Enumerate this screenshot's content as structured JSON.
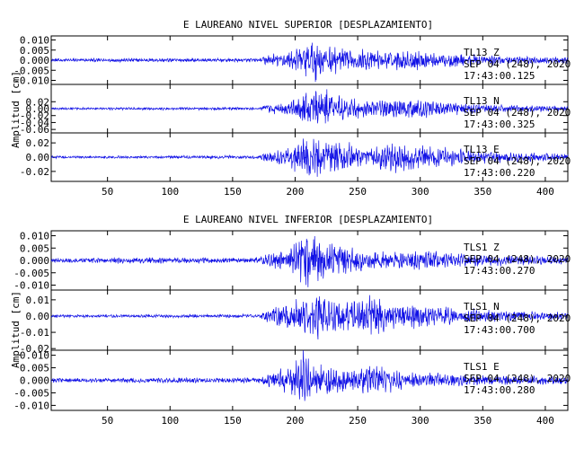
{
  "chart_data": [
    {
      "type": "line",
      "title": "E LAUREANO NIVEL SUPERIOR [DESPLAZAMIENTO]",
      "ylabel": "Amplitud [cm]",
      "xlim": [
        5,
        418
      ],
      "x_ticks": [
        "50",
        "100",
        "150",
        "200",
        "250",
        "300",
        "350",
        "400"
      ],
      "x_tick_values": [
        50,
        100,
        150,
        200,
        250,
        300,
        350,
        400
      ],
      "grid": false,
      "panels": [
        {
          "name": "TL13 Z",
          "ylim": [
            -0.012,
            0.012
          ],
          "y_ticks": [
            "0.010",
            "0.005",
            "0.000",
            "-0.005",
            "-0.010"
          ],
          "y_tick_values": [
            0.01,
            0.005,
            0.0,
            -0.005,
            -0.01
          ],
          "ann": [
            "TL13   Z",
            "SEP 04 (248), 2020",
            "17:43:00.125"
          ],
          "env": [
            [
              5,
              0.0007
            ],
            [
              60,
              0.0009
            ],
            [
              120,
              0.0008
            ],
            [
              172,
              0.0009
            ],
            [
              176,
              0.0025
            ],
            [
              190,
              0.0035
            ],
            [
              200,
              0.005
            ],
            [
              208,
              0.0095
            ],
            [
              215,
              0.011
            ],
            [
              222,
              0.008
            ],
            [
              235,
              0.0055
            ],
            [
              260,
              0.0045
            ],
            [
              290,
              0.005
            ],
            [
              320,
              0.0035
            ],
            [
              360,
              0.0022
            ],
            [
              418,
              0.0015
            ]
          ]
        },
        {
          "name": "TL13 N",
          "ylim": [
            -0.07,
            0.07
          ],
          "y_ticks": [
            "0.02",
            "0.00",
            "-0.02",
            "-0.04",
            "-0.06"
          ],
          "y_tick_values": [
            0.02,
            0.0,
            -0.02,
            -0.04,
            -0.06
          ],
          "ann": [
            "TL13   N",
            "SEP 04 (248), 2020",
            "17:43:00.325"
          ],
          "env": [
            [
              5,
              0.003
            ],
            [
              170,
              0.004
            ],
            [
              176,
              0.012
            ],
            [
              195,
              0.02
            ],
            [
              205,
              0.045
            ],
            [
              215,
              0.062
            ],
            [
              225,
              0.05
            ],
            [
              240,
              0.03
            ],
            [
              260,
              0.022
            ],
            [
              290,
              0.03
            ],
            [
              320,
              0.017
            ],
            [
              360,
              0.01
            ],
            [
              418,
              0.007
            ]
          ]
        },
        {
          "name": "TL13 E",
          "ylim": [
            -0.034,
            0.034
          ],
          "y_ticks": [
            "0.02",
            "0.00",
            "-0.02"
          ],
          "y_tick_values": [
            0.02,
            0.0,
            -0.02
          ],
          "ann": [
            "TL13   E",
            "SEP 04 (248), 2020",
            "17:43:00.220"
          ],
          "env": [
            [
              5,
              0.0016
            ],
            [
              170,
              0.0022
            ],
            [
              176,
              0.006
            ],
            [
              195,
              0.013
            ],
            [
              210,
              0.028
            ],
            [
              222,
              0.021
            ],
            [
              235,
              0.024
            ],
            [
              250,
              0.015
            ],
            [
              265,
              0.016
            ],
            [
              285,
              0.02
            ],
            [
              300,
              0.016
            ],
            [
              320,
              0.012
            ],
            [
              350,
              0.009
            ],
            [
              418,
              0.0045
            ]
          ]
        }
      ]
    },
    {
      "type": "line",
      "title": "E LAUREANO NIVEL INFERIOR [DESPLAZAMIENTO]",
      "ylabel": "Amplitud [cm]",
      "xlim": [
        5,
        418
      ],
      "x_ticks": [
        "50",
        "100",
        "150",
        "200",
        "250",
        "300",
        "350",
        "400"
      ],
      "x_tick_values": [
        50,
        100,
        150,
        200,
        250,
        300,
        350,
        400
      ],
      "grid": false,
      "panels": [
        {
          "name": "TLS1 Z",
          "ylim": [
            -0.012,
            0.012
          ],
          "y_ticks": [
            "0.010",
            "0.005",
            "0.000",
            "-0.005",
            "-0.010"
          ],
          "y_tick_values": [
            0.01,
            0.005,
            0.0,
            -0.005,
            -0.01
          ],
          "ann": [
            "TLS1   Z",
            "SEP 04 (248), 2020",
            "17:43:00.270"
          ],
          "env": [
            [
              5,
              0.0008
            ],
            [
              60,
              0.0012
            ],
            [
              120,
              0.001
            ],
            [
              172,
              0.0012
            ],
            [
              176,
              0.0025
            ],
            [
              195,
              0.004
            ],
            [
              208,
              0.01
            ],
            [
              215,
              0.011
            ],
            [
              225,
              0.007
            ],
            [
              245,
              0.0045
            ],
            [
              275,
              0.003
            ],
            [
              295,
              0.004
            ],
            [
              330,
              0.0025
            ],
            [
              418,
              0.0015
            ]
          ]
        },
        {
          "name": "TLS1 N",
          "ylim": [
            -0.021,
            0.016
          ],
          "y_ticks": [
            "0.01",
            "0.00",
            "-0.01",
            "-0.02"
          ],
          "y_tick_values": [
            0.01,
            0.0,
            -0.01,
            -0.02
          ],
          "ann": [
            "TLS1   N",
            "SEP 04 (248), 2020",
            "17:43:00.700"
          ],
          "env": [
            [
              5,
              0.0008
            ],
            [
              170,
              0.001
            ],
            [
              176,
              0.003
            ],
            [
              205,
              0.01
            ],
            [
              215,
              0.014
            ],
            [
              230,
              0.01
            ],
            [
              250,
              0.009
            ],
            [
              265,
              0.012
            ],
            [
              280,
              0.007
            ],
            [
              300,
              0.007
            ],
            [
              330,
              0.0045
            ],
            [
              418,
              0.002
            ]
          ]
        },
        {
          "name": "TLS1 E",
          "ylim": [
            -0.012,
            0.012
          ],
          "y_ticks": [
            "0.010",
            "0.005",
            "0.000",
            "-0.005",
            "-0.010"
          ],
          "y_tick_values": [
            0.01,
            0.005,
            0.0,
            -0.005,
            -0.01
          ],
          "ann": [
            "TLS1   E",
            "SEP 04 (248), 2020",
            "17:43:00.280"
          ],
          "env": [
            [
              5,
              0.0008
            ],
            [
              170,
              0.001
            ],
            [
              176,
              0.002
            ],
            [
              198,
              0.006
            ],
            [
              205,
              0.011
            ],
            [
              212,
              0.008
            ],
            [
              230,
              0.0055
            ],
            [
              245,
              0.004
            ],
            [
              262,
              0.006
            ],
            [
              280,
              0.004
            ],
            [
              300,
              0.003
            ],
            [
              340,
              0.002
            ],
            [
              418,
              0.0015
            ]
          ]
        }
      ]
    }
  ]
}
